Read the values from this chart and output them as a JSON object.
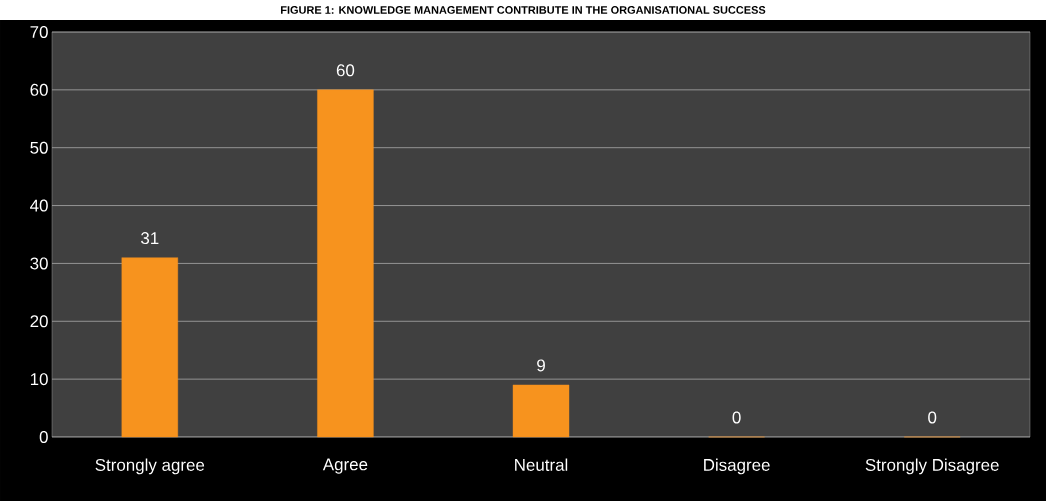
{
  "chart_data": {
    "type": "bar",
    "title": "FIGURE 1: KNOWLEDGE MANAGEMENT CONTRIBUTE IN THE ORGANISATIONAL SUCCESS",
    "categories": [
      "Strongly agree",
      "Agree",
      "Neutral",
      "Disagree",
      "Strongly Disagree"
    ],
    "values": [
      31,
      60,
      9,
      0,
      0
    ],
    "color": "#f7931e",
    "ylim": [
      0,
      70
    ],
    "yticks": [
      0,
      10,
      20,
      30,
      40,
      50,
      60,
      70
    ],
    "grid": "y",
    "data_labels": true
  }
}
